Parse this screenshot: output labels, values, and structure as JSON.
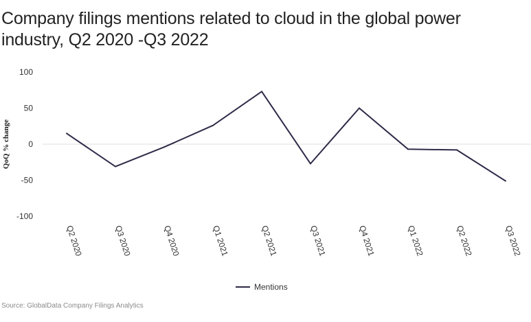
{
  "title": "Company filings mentions related to cloud in the global power industry, Q2 2020 -Q3 2022",
  "source": "Source: GlobalData Company Filings Analytics",
  "colors": {
    "line": "#2e2a47",
    "zero_line": "#dddddd",
    "text": "#333333"
  },
  "chart_data": {
    "type": "line",
    "categories": [
      "Q2 2020",
      "Q3 2020",
      "Q4 2020",
      "Q1 2021",
      "Q2 2021",
      "Q3 2021",
      "Q4 2021",
      "Q1 2022",
      "Q2 2022",
      "Q3 2022"
    ],
    "series": [
      {
        "name": "Mentions",
        "values": [
          15,
          -31,
          -4,
          26,
          73,
          -27,
          50,
          -7,
          -8,
          -51
        ]
      }
    ],
    "ylabel": "QoQ % change",
    "xlabel": "",
    "ylim": [
      -100,
      100
    ],
    "yticks": [
      100,
      50,
      0,
      -50,
      -100
    ],
    "grid": false,
    "legend": "bottom-center"
  }
}
